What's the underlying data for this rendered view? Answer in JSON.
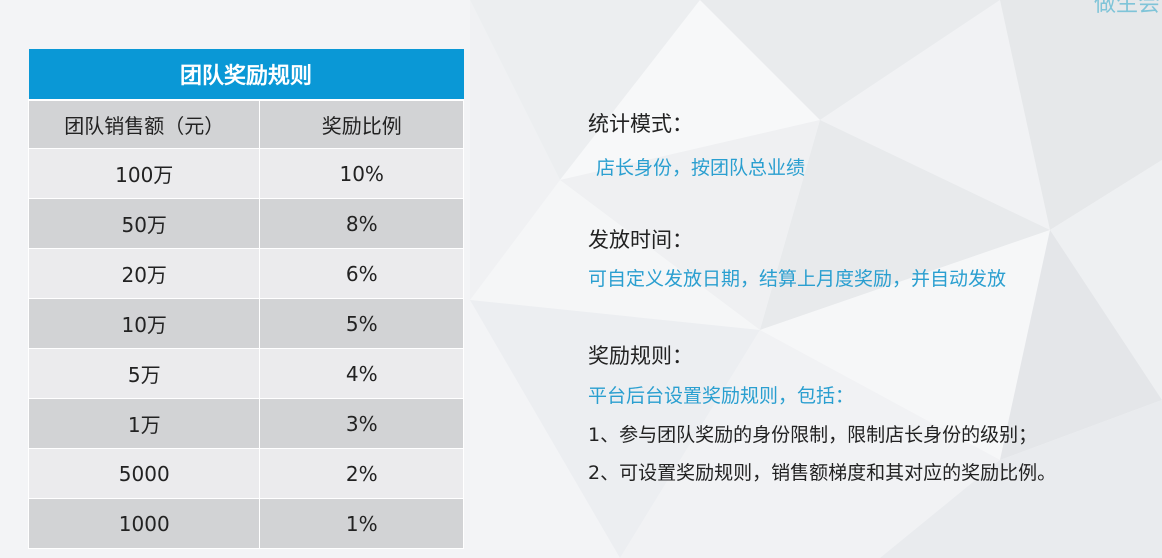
{
  "corner_text": "做生会",
  "table": {
    "title": "团队奖励规则",
    "headers": [
      "团队销售额（元）",
      "奖励比例"
    ],
    "rows": [
      [
        "100万",
        "10%"
      ],
      [
        "50万",
        "8%"
      ],
      [
        "20万",
        "6%"
      ],
      [
        "10万",
        "5%"
      ],
      [
        "5万",
        "4%"
      ],
      [
        "1万",
        "3%"
      ],
      [
        "5000",
        "2%"
      ],
      [
        "1000",
        "1%"
      ]
    ]
  },
  "info": {
    "mode_heading": "统计模式：",
    "mode_text": "店长身份，按团队总业绩",
    "time_heading": "发放时间：",
    "time_text": "可自定义发放日期，结算上月度奖励，并自动发放",
    "rule_heading": "奖励规则：",
    "rule_intro": "平台后台设置奖励规则，包括：",
    "rule_items": [
      "1、参与团队奖励的身份限制，限制店长身份的级别；",
      "2、可设置奖励规则，销售额梯度和其对应的奖励比例。"
    ]
  }
}
